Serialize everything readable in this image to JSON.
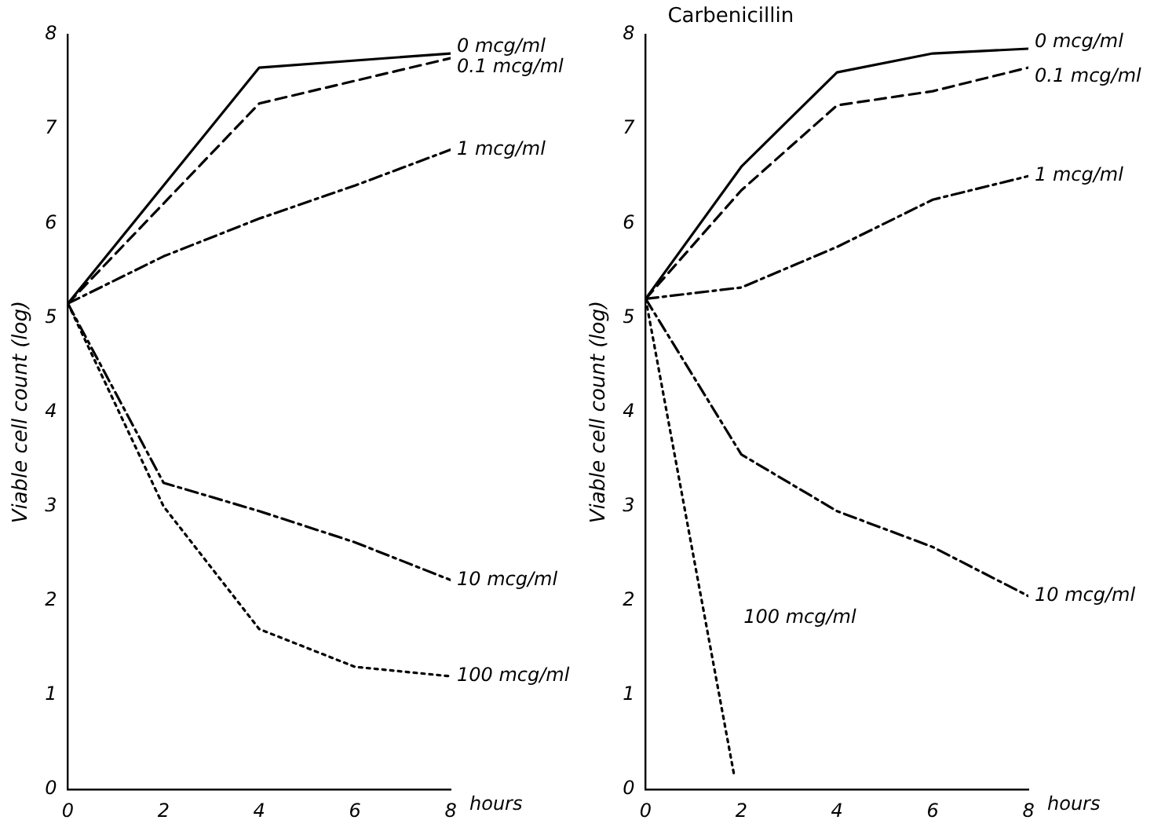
{
  "chart_data": [
    {
      "type": "line",
      "xlabel": "hours",
      "ylabel": "Viable cell count (log)",
      "xlim": [
        0,
        8
      ],
      "xticks": [
        0,
        2,
        4,
        6,
        8
      ],
      "ylim": [
        0,
        8
      ],
      "yticks": [
        0,
        1,
        2,
        3,
        4,
        5,
        6,
        7,
        8
      ],
      "grid": false,
      "legend": false,
      "marker": "none",
      "series": [
        {
          "name": "0 mcg/ml",
          "color": "#000000",
          "line_style": "solid",
          "x": [
            0,
            4,
            8
          ],
          "values": [
            5.15,
            7.65,
            7.8
          ]
        },
        {
          "name": "0.1 mcg/ml",
          "color": "#000000",
          "line_style": "dashed",
          "x": [
            0,
            4,
            8
          ],
          "values": [
            5.15,
            7.27,
            7.75
          ]
        },
        {
          "name": "1 mcg/ml",
          "color": "#000000",
          "line_style": "dashdot",
          "x": [
            0,
            2,
            4,
            6,
            8
          ],
          "values": [
            5.15,
            5.65,
            6.05,
            6.4,
            6.78
          ]
        },
        {
          "name": "10 mcg/ml",
          "color": "#000000",
          "line_style": "dashdot",
          "x": [
            0,
            2,
            4,
            6,
            8
          ],
          "values": [
            5.15,
            3.25,
            2.95,
            2.62,
            2.22
          ]
        },
        {
          "name": "100 mcg/ml",
          "color": "#000000",
          "line_style": "dotted",
          "x": [
            0,
            2,
            4,
            6,
            8
          ],
          "values": [
            5.15,
            3.0,
            1.7,
            1.3,
            1.2
          ]
        }
      ]
    },
    {
      "type": "line",
      "title": "Carbenicillin",
      "xlabel": "hours",
      "ylabel": "Viable cell count (log)",
      "xlim": [
        0,
        8
      ],
      "xticks": [
        0,
        2,
        4,
        6,
        8
      ],
      "ylim": [
        0,
        8
      ],
      "yticks": [
        0,
        1,
        2,
        3,
        4,
        5,
        6,
        7,
        8
      ],
      "grid": false,
      "legend": false,
      "marker": "none",
      "series": [
        {
          "name": "0 mcg/ml",
          "color": "#000000",
          "line_style": "solid",
          "x": [
            0,
            2,
            4,
            6,
            8
          ],
          "values": [
            5.2,
            6.6,
            7.6,
            7.8,
            7.85
          ]
        },
        {
          "name": "0.1 mcg/ml",
          "color": "#000000",
          "line_style": "dashed",
          "x": [
            0,
            2,
            4,
            6,
            8
          ],
          "values": [
            5.2,
            6.35,
            7.25,
            7.4,
            7.65
          ]
        },
        {
          "name": "1 mcg/ml",
          "color": "#000000",
          "line_style": "dashdot",
          "x": [
            0,
            2,
            4,
            6,
            8
          ],
          "values": [
            5.2,
            5.32,
            5.75,
            6.25,
            6.5
          ]
        },
        {
          "name": "10 mcg/ml",
          "color": "#000000",
          "line_style": "dashdot",
          "x": [
            0,
            2,
            4,
            6,
            8
          ],
          "values": [
            5.2,
            3.55,
            2.95,
            2.57,
            2.05
          ]
        },
        {
          "name": "100 mcg/ml",
          "color": "#000000",
          "line_style": "dotted",
          "x": [
            0,
            1.85
          ],
          "values": [
            5.2,
            0.15
          ]
        }
      ]
    }
  ]
}
